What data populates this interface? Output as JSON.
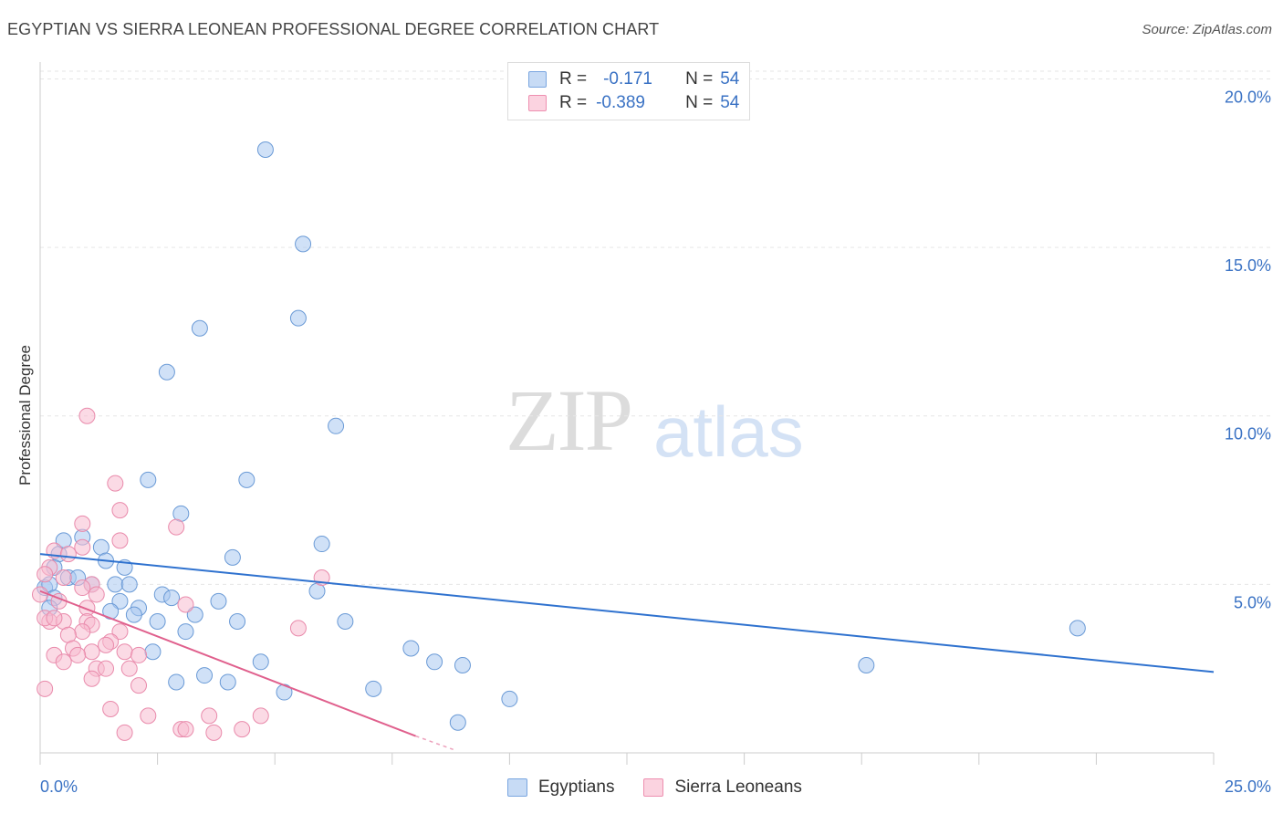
{
  "chart_data": {
    "type": "scatter",
    "title": "EGYPTIAN VS SIERRA LEONEAN PROFESSIONAL DEGREE CORRELATION CHART",
    "source": "Source: ZipAtlas.com",
    "ylabel": "Professional Degree",
    "xlabel": "",
    "xlim": [
      0,
      25
    ],
    "ylim": [
      0,
      20.5
    ],
    "x_tick_labels": {
      "min": "0.0%",
      "max": "25.0%"
    },
    "y_ticks": [
      {
        "value": 5,
        "label": "5.0%"
      },
      {
        "value": 10,
        "label": "10.0%"
      },
      {
        "value": 15,
        "label": "15.0%"
      },
      {
        "value": 20,
        "label": "20.0%"
      }
    ],
    "watermark": {
      "part1": "ZIP",
      "part2": "atlas"
    },
    "legend": [
      {
        "r_label": "R =",
        "r_value": "-0.171",
        "n_label": "N =",
        "n_value": "54",
        "color": "#a9c8f0",
        "border": "#7aa6e0"
      },
      {
        "r_label": "R =",
        "r_value": "-0.389",
        "n_label": "N =",
        "n_value": "54",
        "color": "#f7bcd0",
        "border": "#ee8fb0"
      }
    ],
    "series": [
      {
        "name": "Egyptians",
        "color": "#a9c8f0",
        "stroke": "#6a9ad6",
        "trend": {
          "x0": 0.0,
          "y0": 5.9,
          "x1": 25.0,
          "y1": 2.4,
          "color": "#2f72cf"
        },
        "points": [
          [
            4.8,
            17.9
          ],
          [
            5.6,
            15.1
          ],
          [
            3.4,
            12.6
          ],
          [
            5.5,
            12.9
          ],
          [
            2.7,
            11.3
          ],
          [
            6.3,
            9.7
          ],
          [
            2.3,
            8.1
          ],
          [
            4.4,
            8.1
          ],
          [
            3.0,
            7.1
          ],
          [
            0.4,
            5.9
          ],
          [
            0.5,
            6.3
          ],
          [
            0.9,
            6.4
          ],
          [
            1.3,
            6.1
          ],
          [
            6.0,
            6.2
          ],
          [
            4.1,
            5.8
          ],
          [
            0.3,
            5.5
          ],
          [
            0.6,
            5.2
          ],
          [
            0.8,
            5.2
          ],
          [
            1.4,
            5.7
          ],
          [
            1.8,
            5.5
          ],
          [
            0.1,
            4.9
          ],
          [
            0.2,
            5.0
          ],
          [
            1.1,
            5.0
          ],
          [
            1.6,
            5.0
          ],
          [
            1.9,
            5.0
          ],
          [
            0.3,
            4.6
          ],
          [
            1.7,
            4.5
          ],
          [
            2.6,
            4.7
          ],
          [
            2.8,
            4.6
          ],
          [
            3.8,
            4.5
          ],
          [
            0.2,
            4.3
          ],
          [
            1.5,
            4.2
          ],
          [
            2.1,
            4.3
          ],
          [
            2.0,
            4.1
          ],
          [
            3.3,
            4.1
          ],
          [
            2.5,
            3.9
          ],
          [
            4.2,
            3.9
          ],
          [
            6.5,
            3.9
          ],
          [
            5.9,
            4.8
          ],
          [
            3.1,
            3.6
          ],
          [
            2.4,
            3.0
          ],
          [
            7.9,
            3.1
          ],
          [
            4.7,
            2.7
          ],
          [
            8.4,
            2.7
          ],
          [
            9.0,
            2.6
          ],
          [
            17.6,
            2.6
          ],
          [
            22.1,
            3.7
          ],
          [
            2.9,
            2.1
          ],
          [
            3.5,
            2.3
          ],
          [
            4.0,
            2.1
          ],
          [
            5.2,
            1.8
          ],
          [
            7.1,
            1.9
          ],
          [
            10.0,
            1.6
          ],
          [
            8.9,
            0.9
          ]
        ]
      },
      {
        "name": "Sierra Leoneans",
        "color": "#f7bcd0",
        "stroke": "#e98aab",
        "trend": {
          "x0": 0.0,
          "y0": 4.8,
          "x1": 8.0,
          "y1": 0.5,
          "color": "#e0608d",
          "dash_to_x": 8.8,
          "dash_to_y": 0.1
        },
        "points": [
          [
            1.0,
            10.0
          ],
          [
            1.6,
            8.0
          ],
          [
            1.7,
            7.2
          ],
          [
            0.9,
            6.8
          ],
          [
            2.9,
            6.7
          ],
          [
            1.7,
            6.3
          ],
          [
            0.9,
            6.1
          ],
          [
            0.3,
            6.0
          ],
          [
            0.6,
            5.9
          ],
          [
            0.2,
            5.5
          ],
          [
            0.1,
            5.3
          ],
          [
            0.5,
            5.2
          ],
          [
            1.1,
            5.0
          ],
          [
            0.9,
            4.9
          ],
          [
            1.2,
            4.7
          ],
          [
            0.4,
            4.5
          ],
          [
            0.0,
            4.7
          ],
          [
            6.0,
            5.2
          ],
          [
            0.2,
            3.9
          ],
          [
            0.5,
            3.9
          ],
          [
            1.0,
            4.3
          ],
          [
            1.0,
            3.9
          ],
          [
            1.1,
            3.8
          ],
          [
            0.1,
            4.0
          ],
          [
            0.3,
            4.0
          ],
          [
            3.1,
            4.4
          ],
          [
            0.9,
            3.6
          ],
          [
            1.7,
            3.6
          ],
          [
            0.6,
            3.5
          ],
          [
            1.5,
            3.3
          ],
          [
            1.4,
            3.2
          ],
          [
            5.5,
            3.7
          ],
          [
            0.3,
            2.9
          ],
          [
            0.7,
            3.1
          ],
          [
            1.1,
            3.0
          ],
          [
            1.8,
            3.0
          ],
          [
            2.1,
            2.9
          ],
          [
            0.5,
            2.7
          ],
          [
            1.2,
            2.5
          ],
          [
            1.4,
            2.5
          ],
          [
            1.9,
            2.5
          ],
          [
            2.1,
            2.0
          ],
          [
            3.6,
            1.1
          ],
          [
            4.7,
            1.1
          ],
          [
            1.8,
            0.6
          ],
          [
            3.0,
            0.7
          ],
          [
            3.1,
            0.7
          ],
          [
            3.7,
            0.6
          ],
          [
            4.3,
            0.7
          ],
          [
            1.1,
            2.2
          ],
          [
            0.8,
            2.9
          ],
          [
            0.1,
            1.9
          ],
          [
            1.5,
            1.3
          ],
          [
            2.3,
            1.1
          ]
        ]
      }
    ]
  }
}
